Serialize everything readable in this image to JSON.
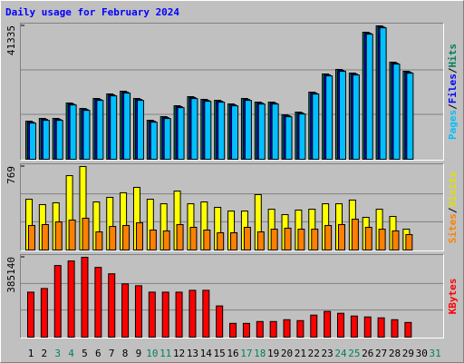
{
  "chart_data": [
    {
      "type": "bar",
      "title": "Daily usage for February 2024",
      "separator": "/",
      "ylim": [
        0,
        41335
      ],
      "yticks": [
        41335
      ],
      "series": [
        {
          "name": "Hits",
          "color": "#00805c",
          "values": [
            11810,
            12654,
            12654,
            17434,
            15747,
            18840,
            20246,
            21089,
            18840,
            12091,
            13216,
            16590,
            19402,
            18559,
            18277,
            17153,
            18840,
            17715,
            17715,
            13778,
            14622,
            20808,
            26432,
            27838,
            26713,
            39367,
            41335,
            30087,
            27275,
            null,
            null
          ]
        },
        {
          "name": "Files",
          "color": "#0000ff",
          "values": [
            11510,
            12354,
            12354,
            17134,
            15447,
            18540,
            19946,
            20789,
            18540,
            11791,
            12916,
            16290,
            19102,
            18259,
            17977,
            16853,
            18540,
            17415,
            17415,
            13478,
            14322,
            20508,
            26132,
            27538,
            26413,
            39067,
            41035,
            29787,
            26975,
            null,
            null
          ]
        },
        {
          "name": "Pages",
          "color": "#00c0ff",
          "values": [
            11210,
            12054,
            12054,
            16834,
            15147,
            18240,
            19646,
            20489,
            18240,
            11491,
            12616,
            15990,
            18802,
            17959,
            17677,
            16553,
            18240,
            17115,
            17115,
            13178,
            14022,
            20208,
            25832,
            27238,
            26113,
            38767,
            40735,
            29487,
            26675,
            null,
            null
          ]
        }
      ]
    },
    {
      "type": "bar",
      "ylim": [
        0,
        769
      ],
      "yticks": [
        769
      ],
      "series": [
        {
          "name": "Visits",
          "color": "#ffff00",
          "text_color": "#e0e000",
          "values": [
            468,
            418,
            435,
            685,
            769,
            443,
            485,
            527,
            577,
            468,
            426,
            543,
            426,
            443,
            393,
            359,
            359,
            510,
            376,
            326,
            368,
            376,
            426,
            426,
            460,
            301,
            376,
            309,
            192,
            null,
            null
          ]
        },
        {
          "name": "Sites",
          "color": "#ff8000",
          "values": [
            226,
            234,
            259,
            276,
            293,
            167,
            217,
            226,
            251,
            184,
            176,
            234,
            209,
            184,
            159,
            159,
            209,
            167,
            192,
            201,
            192,
            192,
            226,
            234,
            284,
            209,
            192,
            176,
            142,
            null,
            null
          ]
        }
      ]
    },
    {
      "type": "bar",
      "ylim": [
        0,
        385140
      ],
      "yticks": [
        385140
      ],
      "series": [
        {
          "name": "KBytes",
          "color": "#ff0000",
          "values": [
            216900,
            234600,
            345300,
            367400,
            385140,
            336400,
            305500,
            256800,
            247900,
            216900,
            216900,
            216900,
            225800,
            225800,
            150500,
            66400,
            66400,
            75300,
            75300,
            84100,
            79700,
            106200,
            124000,
            115100,
            101800,
            97400,
            93000,
            84100,
            70800,
            null,
            null
          ]
        }
      ],
      "categories": [
        "1",
        "2",
        "3",
        "4",
        "5",
        "6",
        "7",
        "8",
        "9",
        "10",
        "11",
        "12",
        "13",
        "14",
        "15",
        "16",
        "17",
        "18",
        "19",
        "20",
        "21",
        "22",
        "23",
        "24",
        "25",
        "26",
        "27",
        "28",
        "29",
        "30",
        "31"
      ],
      "category_colors": [
        "#000000",
        "#000000",
        "#00805c",
        "#00805c",
        "#000000",
        "#000000",
        "#000000",
        "#000000",
        "#000000",
        "#00805c",
        "#00805c",
        "#000000",
        "#000000",
        "#000000",
        "#000000",
        "#000000",
        "#00805c",
        "#00805c",
        "#000000",
        "#000000",
        "#000000",
        "#000000",
        "#000000",
        "#00805c",
        "#00805c",
        "#000000",
        "#000000",
        "#000000",
        "#000000",
        "#000000",
        "#00805c"
      ]
    }
  ]
}
